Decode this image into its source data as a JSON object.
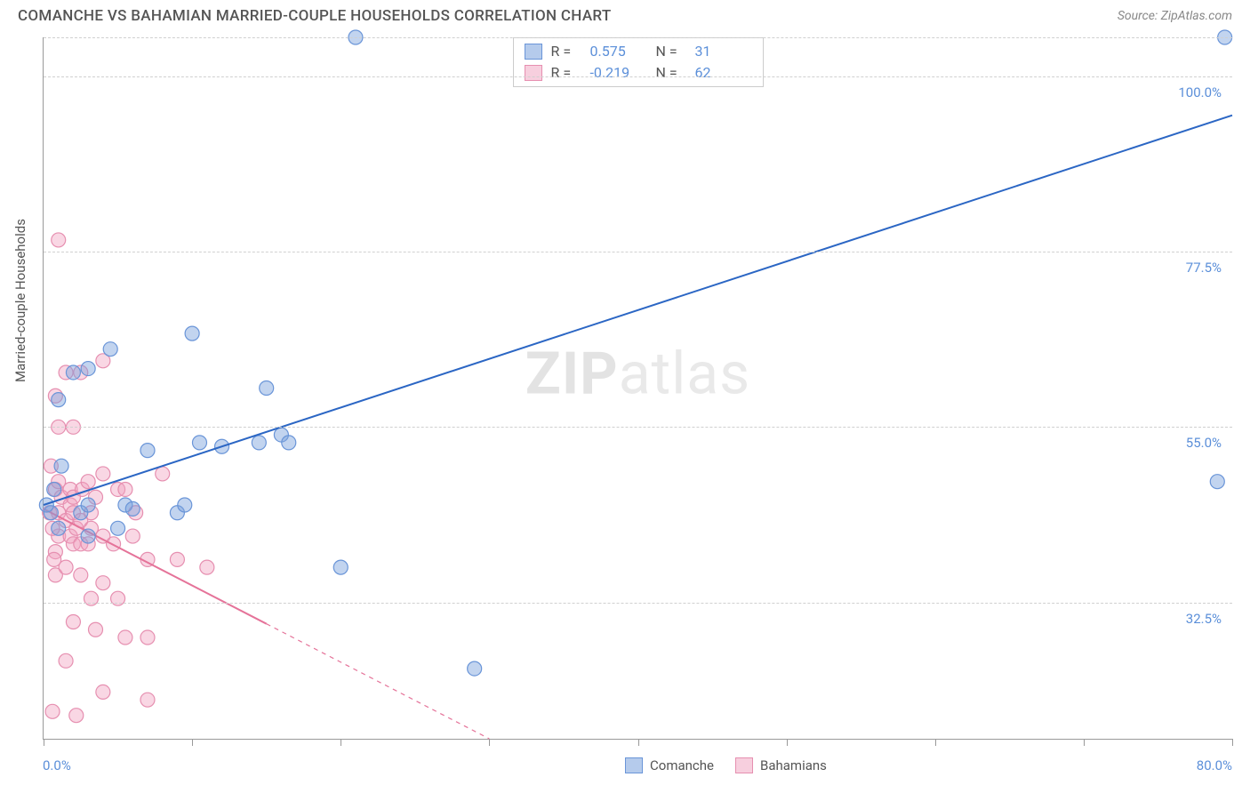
{
  "header": {
    "title": "COMANCHE VS BAHAMIAN MARRIED-COUPLE HOUSEHOLDS CORRELATION CHART",
    "source": "Source: ZipAtlas.com"
  },
  "watermark": {
    "bold": "ZIP",
    "light": "atlas"
  },
  "chart": {
    "type": "scatter",
    "xmin": 0,
    "xmax": 80,
    "ymin": 15,
    "ymax": 105,
    "x_tick_positions": [
      0,
      10,
      20,
      30,
      40,
      50,
      60,
      70,
      80
    ],
    "x_start_label": "0.0%",
    "x_end_label": "80.0%",
    "y_gridlines": [
      32.5,
      55.0,
      77.5,
      100.0,
      105.0
    ],
    "y_tick_labels": [
      "32.5%",
      "55.0%",
      "77.5%",
      "100.0%",
      ""
    ],
    "yaxis_title": "Married-couple Households",
    "marker_radius": 8,
    "series": {
      "blue": {
        "label": "Comanche",
        "fill": "rgba(120,160,220,0.45)",
        "stroke": "#6a95d8",
        "R": "0.575",
        "N": "31",
        "trend": {
          "x1": 0,
          "y1": 45,
          "x2": 80,
          "y2": 95,
          "solid_until_x": 80,
          "stroke": "#2b66c4",
          "width": 2
        },
        "points": [
          [
            0.5,
            44
          ],
          [
            0.7,
            47
          ],
          [
            1,
            42
          ],
          [
            1,
            58.5
          ],
          [
            0.2,
            45
          ],
          [
            1.2,
            50
          ],
          [
            2,
            62
          ],
          [
            2.5,
            44
          ],
          [
            3,
            62.5
          ],
          [
            3,
            41
          ],
          [
            3,
            45
          ],
          [
            4.5,
            65
          ],
          [
            5,
            42
          ],
          [
            5.5,
            45
          ],
          [
            6,
            44.5
          ],
          [
            7,
            52
          ],
          [
            9,
            44
          ],
          [
            9.5,
            45
          ],
          [
            10,
            67
          ],
          [
            10.5,
            53
          ],
          [
            12,
            52.5
          ],
          [
            14.5,
            53
          ],
          [
            15,
            60
          ],
          [
            16,
            54
          ],
          [
            16.5,
            53
          ],
          [
            20,
            37
          ],
          [
            21,
            105
          ],
          [
            29,
            24
          ],
          [
            79.5,
            105
          ],
          [
            79,
            48
          ]
        ]
      },
      "pink": {
        "label": "Bahamians",
        "fill": "rgba(240,160,190,0.42)",
        "stroke": "#e68fb0",
        "R": "-0.219",
        "N": "62",
        "trend": {
          "x1": 0,
          "y1": 44.5,
          "x2": 30,
          "y2": 15,
          "solid_until_x": 15,
          "stroke": "#e57399",
          "width": 2
        },
        "points": [
          [
            0.4,
            44
          ],
          [
            0.5,
            50
          ],
          [
            0.8,
            59
          ],
          [
            0.8,
            47
          ],
          [
            0.8,
            39
          ],
          [
            0.8,
            36
          ],
          [
            1,
            79
          ],
          [
            1,
            44
          ],
          [
            1,
            41
          ],
          [
            1,
            48
          ],
          [
            1.2,
            46
          ],
          [
            1.5,
            62
          ],
          [
            1.5,
            43
          ],
          [
            1.5,
            25
          ],
          [
            1.5,
            37
          ],
          [
            1.8,
            45
          ],
          [
            1.8,
            41
          ],
          [
            1.8,
            47
          ],
          [
            2,
            44
          ],
          [
            2,
            46
          ],
          [
            2,
            40
          ],
          [
            2,
            30
          ],
          [
            2,
            55
          ],
          [
            2.2,
            42
          ],
          [
            2.2,
            18
          ],
          [
            2.5,
            62
          ],
          [
            2.5,
            40
          ],
          [
            2.5,
            36
          ],
          [
            2.5,
            43
          ],
          [
            2.6,
            47
          ],
          [
            3,
            40
          ],
          [
            1,
            55
          ],
          [
            0.6,
            18.5
          ],
          [
            0.6,
            42
          ],
          [
            0.7,
            38
          ],
          [
            3,
            48
          ],
          [
            3.2,
            42
          ],
          [
            3.2,
            33
          ],
          [
            3.2,
            44
          ],
          [
            3.5,
            46
          ],
          [
            3.5,
            29
          ],
          [
            4,
            35
          ],
          [
            4,
            41
          ],
          [
            4,
            21
          ],
          [
            4,
            49
          ],
          [
            4,
            63.5
          ],
          [
            4.7,
            40
          ],
          [
            5,
            47
          ],
          [
            5,
            33
          ],
          [
            5.5,
            47
          ],
          [
            5.5,
            28
          ],
          [
            6,
            41
          ],
          [
            6.2,
            44
          ],
          [
            7,
            28
          ],
          [
            7,
            20
          ],
          [
            7,
            38
          ],
          [
            8,
            49
          ],
          [
            9,
            38
          ],
          [
            11,
            37
          ]
        ]
      }
    }
  },
  "legend_bottom": [
    {
      "key": "blue",
      "label": "Comanche"
    },
    {
      "key": "pink",
      "label": "Bahamians"
    }
  ]
}
